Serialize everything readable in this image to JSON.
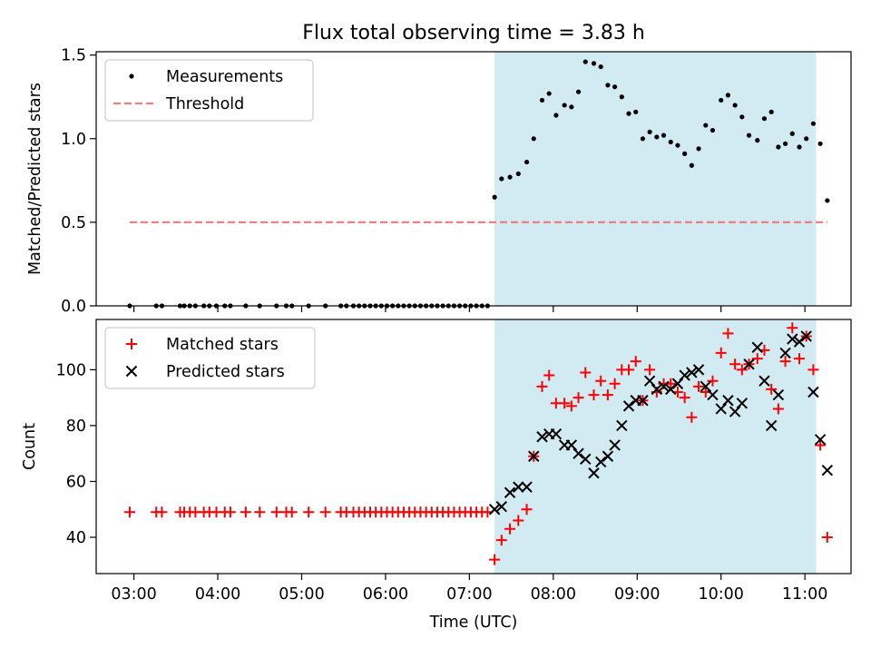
{
  "title": "Flux total observing time = 3.83 h",
  "colors": {
    "shade": "#add8e6",
    "measurement": "#000000",
    "threshold": "#f08080",
    "matched": "#ff0000",
    "predicted": "#000000"
  },
  "chart_data": [
    {
      "type": "scatter",
      "panel": "top",
      "xlabel": "",
      "ylabel": "Matched/Predicted stars",
      "ylim": [
        0,
        1.52
      ],
      "yticks": [
        0.0,
        0.5,
        1.0,
        1.5
      ],
      "ytick_labels": [
        "0.0",
        "0.5",
        "1.0",
        "1.5"
      ],
      "xlim": [
        "02:33",
        "11:33"
      ],
      "shaded_region": [
        "07:18",
        "11:08"
      ],
      "legend": {
        "position": "top-left",
        "entries": [
          "Measurements",
          "Threshold"
        ]
      },
      "series": [
        {
          "name": "Measurements",
          "marker": "dot",
          "points": [
            [
              "02:57",
              0
            ],
            [
              "03:16",
              0
            ],
            [
              "03:20",
              0
            ],
            [
              "03:33",
              0
            ],
            [
              "03:36",
              0
            ],
            [
              "03:40",
              0
            ],
            [
              "03:44",
              0
            ],
            [
              "03:50",
              0
            ],
            [
              "03:54",
              0
            ],
            [
              "03:59",
              0
            ],
            [
              "04:05",
              0
            ],
            [
              "04:09",
              0
            ],
            [
              "04:20",
              0
            ],
            [
              "04:30",
              0
            ],
            [
              "04:42",
              0
            ],
            [
              "04:49",
              0
            ],
            [
              "04:53",
              0
            ],
            [
              "05:05",
              0
            ],
            [
              "05:17",
              0
            ],
            [
              "05:28",
              0
            ],
            [
              "05:32",
              0
            ],
            [
              "05:37",
              0
            ],
            [
              "05:41",
              0
            ],
            [
              "05:45",
              0
            ],
            [
              "05:49",
              0
            ],
            [
              "05:53",
              0
            ],
            [
              "05:57",
              0
            ],
            [
              "06:01",
              0
            ],
            [
              "06:05",
              0
            ],
            [
              "06:09",
              0
            ],
            [
              "06:13",
              0
            ],
            [
              "06:17",
              0
            ],
            [
              "06:21",
              0
            ],
            [
              "06:25",
              0
            ],
            [
              "06:29",
              0
            ],
            [
              "06:33",
              0
            ],
            [
              "06:37",
              0
            ],
            [
              "06:41",
              0
            ],
            [
              "06:45",
              0
            ],
            [
              "06:49",
              0
            ],
            [
              "06:53",
              0
            ],
            [
              "06:57",
              0
            ],
            [
              "07:01",
              0
            ],
            [
              "07:05",
              0
            ],
            [
              "07:09",
              0
            ],
            [
              "07:13",
              0
            ],
            [
              "07:18",
              0.65
            ],
            [
              "07:23",
              0.76
            ],
            [
              "07:29",
              0.77
            ],
            [
              "07:35",
              0.79
            ],
            [
              "07:41",
              0.86
            ],
            [
              "07:46",
              1.0
            ],
            [
              "07:52",
              1.23
            ],
            [
              "07:57",
              1.27
            ],
            [
              "08:02",
              1.14
            ],
            [
              "08:08",
              1.2
            ],
            [
              "08:13",
              1.19
            ],
            [
              "08:18",
              1.28
            ],
            [
              "08:23",
              1.46
            ],
            [
              "08:29",
              1.45
            ],
            [
              "08:34",
              1.43
            ],
            [
              "08:39",
              1.32
            ],
            [
              "08:44",
              1.31
            ],
            [
              "08:49",
              1.25
            ],
            [
              "08:54",
              1.15
            ],
            [
              "08:59",
              1.16
            ],
            [
              "09:04",
              1.0
            ],
            [
              "09:09",
              1.04
            ],
            [
              "09:14",
              1.01
            ],
            [
              "09:19",
              1.02
            ],
            [
              "09:24",
              0.98
            ],
            [
              "09:29",
              0.96
            ],
            [
              "09:34",
              0.91
            ],
            [
              "09:39",
              0.84
            ],
            [
              "09:44",
              0.94
            ],
            [
              "09:49",
              1.08
            ],
            [
              "09:54",
              1.05
            ],
            [
              "10:00",
              1.23
            ],
            [
              "10:05",
              1.26
            ],
            [
              "10:10",
              1.2
            ],
            [
              "10:15",
              1.13
            ],
            [
              "10:20",
              1.02
            ],
            [
              "10:26",
              0.99
            ],
            [
              "10:31",
              1.12
            ],
            [
              "10:36",
              1.16
            ],
            [
              "10:41",
              0.95
            ],
            [
              "10:46",
              0.97
            ],
            [
              "10:51",
              1.03
            ],
            [
              "10:56",
              0.95
            ],
            [
              "11:01",
              1.0
            ],
            [
              "11:06",
              1.09
            ],
            [
              "11:11",
              0.97
            ],
            [
              "11:16",
              0.63
            ]
          ]
        },
        {
          "name": "Threshold",
          "style": "dashed",
          "points": [
            [
              "02:57",
              0.5
            ],
            [
              "11:16",
              0.5
            ]
          ]
        }
      ]
    },
    {
      "type": "scatter",
      "panel": "bottom",
      "xlabel": "Time (UTC)",
      "ylabel": "Count",
      "ylim": [
        27,
        118
      ],
      "yticks": [
        40,
        60,
        80,
        100
      ],
      "ytick_labels": [
        "40",
        "60",
        "80",
        "100"
      ],
      "xlim": [
        "02:33",
        "11:33"
      ],
      "xticks": [
        "03:00",
        "04:00",
        "05:00",
        "06:00",
        "07:00",
        "08:00",
        "09:00",
        "10:00",
        "11:00"
      ],
      "xtick_labels": [
        "03:00",
        "04:00",
        "05:00",
        "06:00",
        "07:00",
        "08:00",
        "09:00",
        "10:00",
        "11:00"
      ],
      "shaded_region": [
        "07:18",
        "11:08"
      ],
      "legend": {
        "position": "top-left",
        "entries": [
          "Matched stars",
          "Predicted stars"
        ]
      },
      "series": [
        {
          "name": "Matched stars",
          "marker": "plus",
          "points": [
            [
              "02:57",
              49
            ],
            [
              "03:16",
              49
            ],
            [
              "03:20",
              49
            ],
            [
              "03:33",
              49
            ],
            [
              "03:36",
              49
            ],
            [
              "03:40",
              49
            ],
            [
              "03:44",
              49
            ],
            [
              "03:50",
              49
            ],
            [
              "03:54",
              49
            ],
            [
              "03:59",
              49
            ],
            [
              "04:05",
              49
            ],
            [
              "04:09",
              49
            ],
            [
              "04:20",
              49
            ],
            [
              "04:30",
              49
            ],
            [
              "04:42",
              49
            ],
            [
              "04:49",
              49
            ],
            [
              "04:53",
              49
            ],
            [
              "05:05",
              49
            ],
            [
              "05:17",
              49
            ],
            [
              "05:28",
              49
            ],
            [
              "05:32",
              49
            ],
            [
              "05:37",
              49
            ],
            [
              "05:41",
              49
            ],
            [
              "05:45",
              49
            ],
            [
              "05:49",
              49
            ],
            [
              "05:53",
              49
            ],
            [
              "05:57",
              49
            ],
            [
              "06:01",
              49
            ],
            [
              "06:05",
              49
            ],
            [
              "06:09",
              49
            ],
            [
              "06:13",
              49
            ],
            [
              "06:17",
              49
            ],
            [
              "06:21",
              49
            ],
            [
              "06:25",
              49
            ],
            [
              "06:29",
              49
            ],
            [
              "06:33",
              49
            ],
            [
              "06:37",
              49
            ],
            [
              "06:41",
              49
            ],
            [
              "06:45",
              49
            ],
            [
              "06:49",
              49
            ],
            [
              "06:53",
              49
            ],
            [
              "06:57",
              49
            ],
            [
              "07:01",
              49
            ],
            [
              "07:05",
              49
            ],
            [
              "07:09",
              49
            ],
            [
              "07:13",
              49
            ],
            [
              "07:18",
              32
            ],
            [
              "07:23",
              39
            ],
            [
              "07:29",
              43
            ],
            [
              "07:35",
              46
            ],
            [
              "07:41",
              50
            ],
            [
              "07:46",
              69
            ],
            [
              "07:52",
              94
            ],
            [
              "07:57",
              98
            ],
            [
              "08:02",
              88
            ],
            [
              "08:08",
              88
            ],
            [
              "08:13",
              87
            ],
            [
              "08:18",
              90
            ],
            [
              "08:23",
              99
            ],
            [
              "08:29",
              91
            ],
            [
              "08:34",
              96
            ],
            [
              "08:39",
              91
            ],
            [
              "08:44",
              95
            ],
            [
              "08:49",
              100
            ],
            [
              "08:54",
              100
            ],
            [
              "08:59",
              103
            ],
            [
              "09:04",
              89
            ],
            [
              "09:09",
              100
            ],
            [
              "09:14",
              92
            ],
            [
              "09:19",
              95
            ],
            [
              "09:24",
              95
            ],
            [
              "09:29",
              92
            ],
            [
              "09:34",
              90
            ],
            [
              "09:39",
              83
            ],
            [
              "09:44",
              94
            ],
            [
              "09:49",
              92
            ],
            [
              "09:54",
              96
            ],
            [
              "10:00",
              106
            ],
            [
              "10:05",
              113
            ],
            [
              "10:10",
              102
            ],
            [
              "10:15",
              100
            ],
            [
              "10:20",
              102
            ],
            [
              "10:26",
              104
            ],
            [
              "10:31",
              107
            ],
            [
              "10:36",
              93
            ],
            [
              "10:41",
              86
            ],
            [
              "10:46",
              103
            ],
            [
              "10:51",
              115
            ],
            [
              "10:56",
              104
            ],
            [
              "11:01",
              112
            ],
            [
              "11:06",
              100
            ],
            [
              "11:11",
              73
            ],
            [
              "11:16",
              40
            ]
          ]
        },
        {
          "name": "Predicted stars",
          "marker": "x",
          "points": [
            [
              "07:18",
              50
            ],
            [
              "07:23",
              51
            ],
            [
              "07:29",
              56
            ],
            [
              "07:35",
              58
            ],
            [
              "07:41",
              58
            ],
            [
              "07:46",
              69
            ],
            [
              "07:52",
              76
            ],
            [
              "07:57",
              77
            ],
            [
              "08:02",
              77
            ],
            [
              "08:08",
              73
            ],
            [
              "08:13",
              73
            ],
            [
              "08:18",
              70
            ],
            [
              "08:23",
              68
            ],
            [
              "08:29",
              63
            ],
            [
              "08:34",
              67
            ],
            [
              "08:39",
              69
            ],
            [
              "08:44",
              73
            ],
            [
              "08:49",
              80
            ],
            [
              "08:54",
              87
            ],
            [
              "08:59",
              89
            ],
            [
              "09:04",
              89
            ],
            [
              "09:09",
              96
            ],
            [
              "09:14",
              93
            ],
            [
              "09:19",
              94
            ],
            [
              "09:24",
              93
            ],
            [
              "09:29",
              95
            ],
            [
              "09:34",
              98
            ],
            [
              "09:39",
              99
            ],
            [
              "09:44",
              100
            ],
            [
              "09:49",
              94
            ],
            [
              "09:54",
              91
            ],
            [
              "10:00",
              86
            ],
            [
              "10:05",
              89
            ],
            [
              "10:10",
              85
            ],
            [
              "10:15",
              88
            ],
            [
              "10:20",
              102
            ],
            [
              "10:26",
              108
            ],
            [
              "10:31",
              96
            ],
            [
              "10:36",
              80
            ],
            [
              "10:41",
              91
            ],
            [
              "10:46",
              106
            ],
            [
              "10:51",
              111
            ],
            [
              "10:56",
              110
            ],
            [
              "11:01",
              112
            ],
            [
              "11:06",
              92
            ],
            [
              "11:11",
              75
            ],
            [
              "11:16",
              64
            ]
          ]
        }
      ]
    }
  ]
}
